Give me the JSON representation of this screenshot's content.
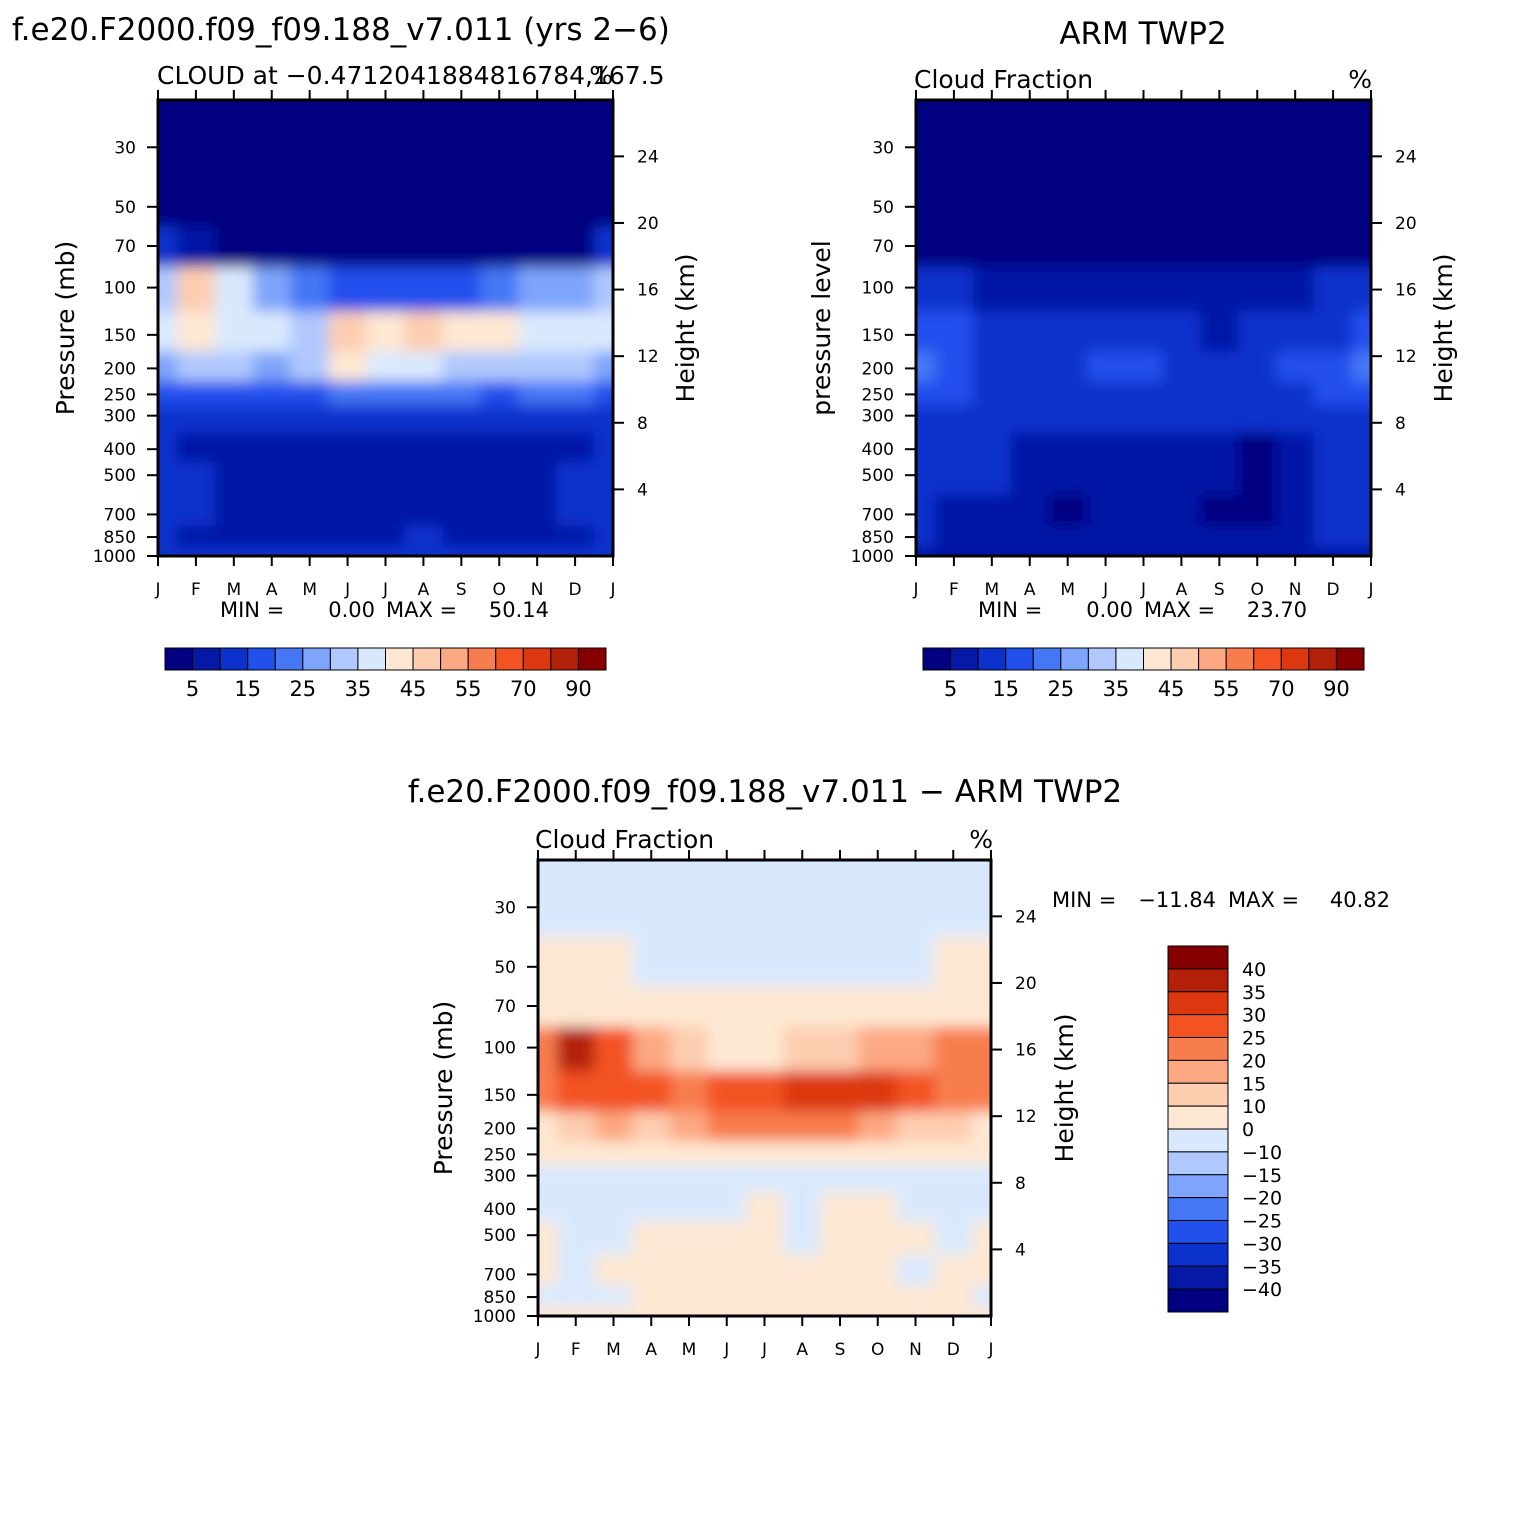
{
  "chart_data": [
    {
      "id": "model",
      "type": "heatmap",
      "title": "f.e20.F2000.f09_f09.188_v7.011 (yrs 2−6)",
      "subtitle_left": "CLOUD at −0.4712041884816784,167.5",
      "subtitle_right": "%",
      "ylabel": "Pressure (mb)",
      "y2label": "Height (km)",
      "months": [
        "J",
        "F",
        "M",
        "A",
        "M",
        "J",
        "J",
        "A",
        "S",
        "O",
        "N",
        "D",
        "J"
      ],
      "pressure_ticks": [
        30,
        50,
        70,
        100,
        150,
        200,
        250,
        300,
        400,
        500,
        700,
        850,
        1000
      ],
      "height_ticks": [
        24,
        20,
        16,
        12,
        8,
        4
      ],
      "stats": {
        "min_label": "MIN =",
        "min": "0.00",
        "max_label": "MAX =",
        "max": "50.14"
      },
      "colorbar_labels": [
        "5",
        "15",
        "25",
        "35",
        "45",
        "55",
        "70",
        "90"
      ],
      "colors": [
        "#000080",
        "#0619a6",
        "#0b32cc",
        "#2150ed",
        "#4577f5",
        "#7ea4fb",
        "#b0c8fd",
        "#d9e9fd",
        "#fee8d3",
        "#fdcdb0",
        "#fca882",
        "#f87d4e",
        "#f35222",
        "#dc3810",
        "#b3200a",
        "#870000"
      ],
      "values": [
        [
          3,
          3,
          3,
          3,
          3,
          3,
          3,
          3,
          3,
          3,
          3,
          3,
          3
        ],
        [
          3,
          3,
          3,
          3,
          3,
          3,
          3,
          3,
          3,
          3,
          3,
          3,
          3
        ],
        [
          11,
          8,
          4,
          3,
          3,
          3,
          3,
          3,
          3,
          3,
          3,
          3,
          11
        ],
        [
          33,
          46,
          36,
          25,
          22,
          16,
          16,
          16,
          18,
          22,
          25,
          28,
          33
        ],
        [
          38,
          42,
          38,
          35,
          32,
          45,
          44,
          45,
          42,
          44,
          36,
          38,
          38
        ],
        [
          27,
          30,
          30,
          26,
          30,
          42,
          38,
          38,
          34,
          30,
          30,
          32,
          27
        ],
        [
          15,
          18,
          15,
          16,
          18,
          20,
          22,
          20,
          22,
          18,
          20,
          20,
          15
        ],
        [
          10,
          12,
          10,
          10,
          10,
          10,
          12,
          12,
          10,
          10,
          10,
          12,
          10
        ],
        [
          10,
          8,
          7,
          8,
          5,
          7,
          8,
          8,
          7,
          5,
          5,
          8,
          10
        ],
        [
          12,
          10,
          8,
          8,
          8,
          6,
          7,
          8,
          8,
          6,
          5,
          10,
          12
        ],
        [
          10,
          10,
          8,
          8,
          5,
          7,
          7,
          8,
          8,
          6,
          8,
          10,
          10
        ],
        [
          10,
          8,
          7,
          8,
          8,
          8,
          8,
          10,
          8,
          8,
          8,
          8,
          10
        ],
        [
          12,
          12,
          12,
          12,
          12,
          12,
          12,
          12,
          12,
          12,
          12,
          12,
          12
        ]
      ]
    },
    {
      "id": "obs",
      "type": "heatmap",
      "title": "ARM TWP2",
      "subtitle_left": "Cloud Fraction",
      "subtitle_right": "%",
      "ylabel": "pressure level",
      "y2label": "Height (km)",
      "months": [
        "J",
        "F",
        "M",
        "A",
        "M",
        "J",
        "J",
        "A",
        "S",
        "O",
        "N",
        "D",
        "J"
      ],
      "pressure_ticks": [
        30,
        50,
        70,
        100,
        150,
        200,
        250,
        300,
        400,
        500,
        700,
        850,
        1000
      ],
      "height_ticks": [
        24,
        20,
        16,
        12,
        8,
        4
      ],
      "stats": {
        "min_label": "MIN =",
        "min": "0.00",
        "max_label": "MAX =",
        "max": "23.70"
      },
      "colorbar_labels": [
        "5",
        "15",
        "25",
        "35",
        "45",
        "55",
        "70",
        "90"
      ],
      "colors": [
        "#000080",
        "#0619a6",
        "#0b32cc",
        "#2150ed",
        "#4577f5",
        "#7ea4fb",
        "#b0c8fd",
        "#d9e9fd",
        "#fee8d3",
        "#fdcdb0",
        "#fca882",
        "#f87d4e",
        "#f35222",
        "#dc3810",
        "#b3200a",
        "#870000"
      ],
      "values": [
        [
          2,
          2,
          2,
          2,
          2,
          2,
          2,
          2,
          2,
          2,
          2,
          2,
          2
        ],
        [
          2,
          2,
          2,
          2,
          2,
          2,
          2,
          2,
          2,
          2,
          2,
          2,
          2
        ],
        [
          3,
          3,
          3,
          3,
          3,
          3,
          3,
          3,
          3,
          3,
          3,
          3,
          3
        ],
        [
          12,
          10,
          8,
          6,
          5,
          5,
          5,
          5,
          5,
          5,
          6,
          10,
          12
        ],
        [
          16,
          15,
          12,
          10,
          10,
          12,
          12,
          10,
          8,
          10,
          12,
          14,
          16
        ],
        [
          20,
          18,
          14,
          12,
          14,
          18,
          16,
          14,
          12,
          14,
          16,
          18,
          20
        ],
        [
          18,
          16,
          14,
          12,
          12,
          14,
          12,
          12,
          12,
          12,
          14,
          16,
          18
        ],
        [
          14,
          12,
          10,
          12,
          10,
          10,
          10,
          10,
          12,
          10,
          12,
          14,
          14
        ],
        [
          12,
          10,
          10,
          8,
          8,
          8,
          8,
          8,
          5,
          2,
          8,
          12,
          12
        ],
        [
          12,
          10,
          10,
          8,
          8,
          8,
          8,
          8,
          5,
          2,
          8,
          12,
          12
        ],
        [
          10,
          8,
          6,
          6,
          4,
          6,
          6,
          6,
          4,
          2,
          6,
          10,
          10
        ],
        [
          10,
          8,
          8,
          8,
          6,
          8,
          8,
          8,
          6,
          6,
          8,
          10,
          10
        ],
        [
          8,
          8,
          8,
          8,
          8,
          8,
          8,
          8,
          8,
          8,
          8,
          8,
          8
        ]
      ]
    },
    {
      "id": "diff",
      "type": "heatmap",
      "title": "f.e20.F2000.f09_f09.188_v7.011 − ARM TWP2",
      "subtitle_left": "Cloud Fraction",
      "subtitle_right": "%",
      "ylabel": "Pressure (mb)",
      "y2label": "Height (km)",
      "months": [
        "J",
        "F",
        "M",
        "A",
        "M",
        "J",
        "J",
        "A",
        "S",
        "O",
        "N",
        "D",
        "J"
      ],
      "pressure_ticks": [
        30,
        50,
        70,
        100,
        150,
        200,
        250,
        300,
        400,
        500,
        700,
        850,
        1000
      ],
      "height_ticks": [
        24,
        20,
        16,
        12,
        8,
        4
      ],
      "stats": {
        "min_label": "MIN =",
        "min": "−11.84",
        "max_label": "MAX =",
        "max": "40.82"
      },
      "colorbar_labels": [
        "40",
        "35",
        "30",
        "25",
        "20",
        "15",
        "10",
        "0",
        "−10",
        "−15",
        "−20",
        "−25",
        "−30",
        "−35",
        "−40"
      ],
      "colors": [
        "#870000",
        "#b3200a",
        "#dc3810",
        "#f35222",
        "#f87d4e",
        "#fca882",
        "#fdcdb0",
        "#fee8d3",
        "#d9e9fd",
        "#b0c8fd",
        "#7ea4fb",
        "#4577f5",
        "#2150ed",
        "#0b32cc",
        "#0619a6",
        "#000080"
      ],
      "values": [
        [
          -2,
          -2,
          -2,
          -2,
          -2,
          -2,
          -2,
          -2,
          -2,
          -2,
          -2,
          -2,
          -2
        ],
        [
          3,
          3,
          3,
          -2,
          -2,
          -2,
          -2,
          -2,
          -2,
          -2,
          -2,
          3,
          3
        ],
        [
          5,
          5,
          5,
          3,
          3,
          3,
          3,
          3,
          3,
          3,
          3,
          5,
          5
        ],
        [
          22,
          35,
          28,
          18,
          12,
          8,
          8,
          10,
          12,
          15,
          18,
          20,
          22
        ],
        [
          22,
          28,
          25,
          25,
          22,
          27,
          28,
          30,
          30,
          30,
          25,
          24,
          22
        ],
        [
          7,
          12,
          16,
          14,
          16,
          24,
          22,
          24,
          22,
          16,
          14,
          14,
          7
        ],
        [
          3,
          6,
          6,
          5,
          6,
          6,
          8,
          8,
          8,
          6,
          5,
          4,
          3
        ],
        [
          -2,
          -4,
          -2,
          -2,
          -2,
          -2,
          -2,
          -2,
          -2,
          -2,
          -2,
          -2,
          -2
        ],
        [
          -2,
          -2,
          -2,
          -2,
          -2,
          -2,
          2,
          -2,
          2,
          2,
          -2,
          -2,
          -2
        ],
        [
          2,
          -2,
          -2,
          2,
          2,
          2,
          2,
          -4,
          2,
          2,
          2,
          -2,
          2
        ],
        [
          2,
          -2,
          2,
          2,
          2,
          2,
          2,
          2,
          2,
          2,
          -2,
          2,
          2
        ],
        [
          -2,
          -2,
          -2,
          2,
          2,
          2,
          2,
          2,
          2,
          2,
          2,
          2,
          -2
        ],
        [
          2,
          2,
          2,
          2,
          2,
          2,
          2,
          2,
          2,
          2,
          2,
          2,
          2
        ]
      ]
    }
  ]
}
